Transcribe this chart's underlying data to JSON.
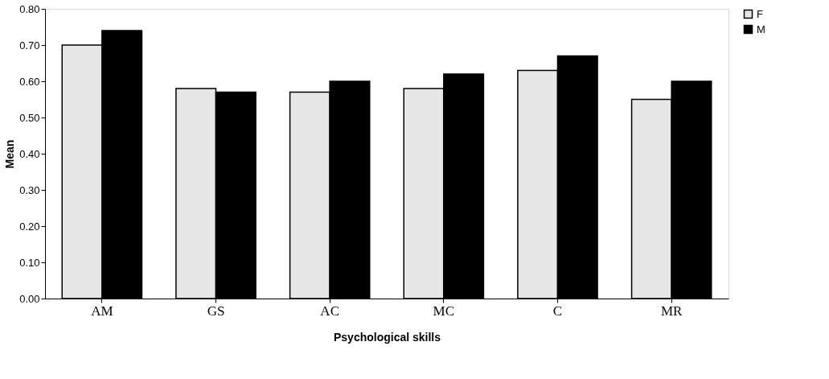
{
  "chart_data": {
    "type": "bar",
    "xlabel": "Psychological skills",
    "ylabel": "Mean",
    "categories": [
      "AM",
      "GS",
      "AC",
      "MC",
      "C",
      "MR"
    ],
    "series": [
      {
        "name": "F",
        "color": "#e6e6e6",
        "values": [
          0.7,
          0.58,
          0.57,
          0.58,
          0.63,
          0.55
        ]
      },
      {
        "name": "M",
        "color": "#000000",
        "values": [
          0.74,
          0.57,
          0.6,
          0.62,
          0.67,
          0.6
        ]
      }
    ],
    "ylim": [
      0,
      0.8
    ],
    "yticks": [
      {
        "value": 0,
        "label": "0.00"
      },
      {
        "value": 0.1,
        "label": "0.10"
      },
      {
        "value": 0.2,
        "label": "0.20"
      },
      {
        "value": 0.3,
        "label": "0.30"
      },
      {
        "value": 0.4,
        "label": "0.40"
      },
      {
        "value": 0.5,
        "label": "0.50"
      },
      {
        "value": 0.6,
        "label": "0.60"
      },
      {
        "value": 0.7,
        "label": "0.70"
      },
      {
        "value": 0.8,
        "label": "0.80"
      }
    ],
    "grid": false,
    "legend": "right"
  }
}
